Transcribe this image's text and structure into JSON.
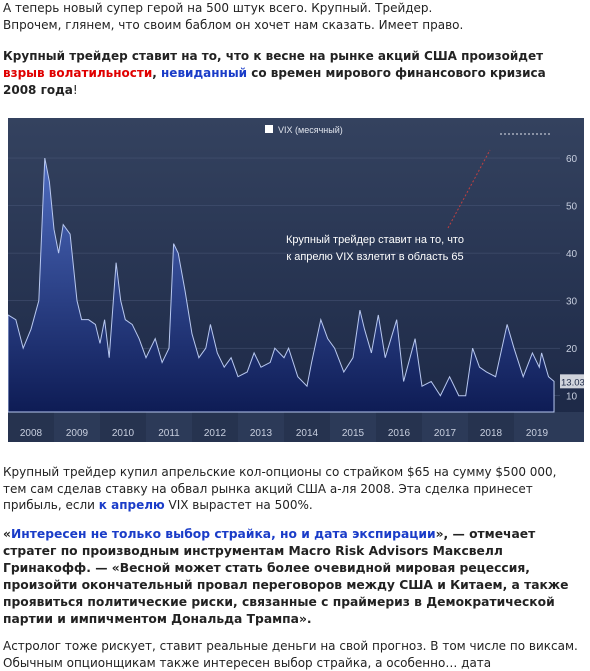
{
  "intro": [
    "А теперь новый супер герой на 500 штук всего. Крупный. Трейдер.",
    "Впрочем, глянем, что своим баблом он хочет нам сказать. Имеет право."
  ],
  "headline": [
    "Крупный трейдер ставит на то, что к весне на рынке акций США произойдет ",
    "взрыв волатильности",
    ", ",
    "невиданный",
    " со времен мирового финансового кризиса 2008 года",
    "!"
  ],
  "chart_data": {
    "type": "area",
    "annotation": [
      "Крупный трейдер ставит на то, что",
      "к апрелю VIX взлетит в область 65"
    ],
    "x": [
      2008.0,
      2008.17,
      2008.33,
      2008.5,
      2008.67,
      2008.8,
      2008.9,
      2009.0,
      2009.1,
      2009.2,
      2009.35,
      2009.5,
      2009.6,
      2009.75,
      2009.9,
      2010.0,
      2010.1,
      2010.2,
      2010.35,
      2010.45,
      2010.55,
      2010.7,
      2010.85,
      2011.0,
      2011.2,
      2011.35,
      2011.5,
      2011.6,
      2011.7,
      2011.85,
      2012.0,
      2012.15,
      2012.3,
      2012.4,
      2012.55,
      2012.7,
      2012.85,
      2013.0,
      2013.2,
      2013.35,
      2013.5,
      2013.7,
      2013.8,
      2014.0,
      2014.1,
      2014.3,
      2014.5,
      2014.6,
      2014.8,
      2014.95,
      2015.1,
      2015.3,
      2015.5,
      2015.65,
      2015.75,
      2015.9,
      2016.05,
      2016.2,
      2016.45,
      2016.6,
      2016.85,
      2017.0,
      2017.2,
      2017.4,
      2017.6,
      2017.8,
      2017.95,
      2018.1,
      2018.25,
      2018.4,
      2018.6,
      2018.85,
      2019.0,
      2019.2,
      2019.4,
      2019.55,
      2019.6,
      2019.75,
      2019.87
    ],
    "series": [
      {
        "name": "VIX (месячный)",
        "color": "#3a5aa8",
        "values": [
          27,
          26,
          20,
          24,
          30,
          60,
          55,
          45,
          40,
          46,
          44,
          30,
          26,
          26,
          25,
          21,
          26,
          18,
          38,
          30,
          26,
          25,
          22,
          18,
          22,
          17,
          20,
          42,
          40,
          32,
          23,
          18,
          20,
          25,
          19,
          16,
          18,
          14,
          15,
          19,
          16,
          17,
          20,
          18,
          20,
          14,
          12,
          17,
          26,
          22,
          20,
          15,
          18,
          28,
          24,
          19,
          27,
          18,
          26,
          13,
          22,
          12,
          13,
          10,
          14,
          10,
          10,
          20,
          16,
          15,
          14,
          25,
          20,
          14,
          19,
          16,
          19,
          14,
          13.03
        ]
      }
    ],
    "xlim": [
      2008,
      2020
    ],
    "ylim": [
      7,
      68
    ],
    "xticks": [
      {
        "value": 2008.5,
        "label": "2008"
      },
      {
        "value": 2009.5,
        "label": "2009"
      },
      {
        "value": 2010.5,
        "label": "2010"
      },
      {
        "value": 2011.5,
        "label": "2011"
      },
      {
        "value": 2012.5,
        "label": "2012"
      },
      {
        "value": 2013.5,
        "label": "2013"
      },
      {
        "value": 2014.5,
        "label": "2014"
      },
      {
        "value": 2015.5,
        "label": "2015"
      },
      {
        "value": 2016.5,
        "label": "2016"
      },
      {
        "value": 2017.5,
        "label": "2017"
      },
      {
        "value": 2018.5,
        "label": "2018"
      },
      {
        "value": 2019.5,
        "label": "2019"
      }
    ],
    "yticks": [
      10,
      20,
      30,
      40,
      50,
      60
    ],
    "grid": true
  },
  "paragraph": [
    "Крупный трейдер купил апрельские кол-опционы со страйком $65 на сумму $500 000, тем сам сделав ставку на обвал рынка акций США а-ля 2008. Эта сделка принесет прибыль, если ",
    "к апрелю",
    " VIX вырастет на 500%."
  ],
  "quote": [
    "«",
    "Интересен не только выбор страйка, но и дата экспирации",
    "», — отмечает стратег по производным инструментам Macro Risk Advisors Максвелл Гринакофф. — «Весной может стать более очевидной мировая рецессия, произойти окончательный провал переговоров между США и Китаем, а также проявиться политические риски, связанные с праймериз в Демократической партии и импичментом Дональда Трампа»."
  ],
  "closing": "Астролог тоже рискует, ставит реальные деньги на свой прогноз. В том числе по виксам. Обычным опционщикам также интересен выбор страйка, а особенно… дата"
}
